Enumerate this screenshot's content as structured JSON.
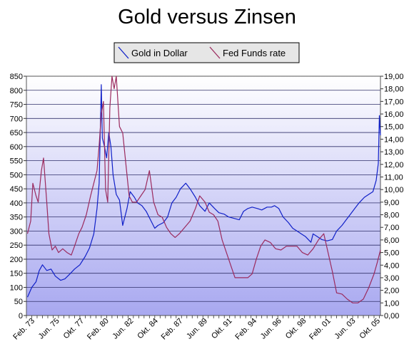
{
  "chart_data": {
    "type": "line",
    "title": "Gold versus Zinsen",
    "legend_position": "top",
    "grid": true,
    "x_tick_labels": [
      "Feb. 73",
      "Jun. 75",
      "Okt. 77",
      "Feb. 80",
      "Jun. 82",
      "Okt. 84",
      "Feb. 87",
      "Jun. 89",
      "Okt. 91",
      "Feb. 94",
      "Jun. 96",
      "Okt. 98",
      "Feb. 01",
      "Jun. 03",
      "Okt. 05"
    ],
    "x_range": [
      1973.0,
      2006.1
    ],
    "y_left": {
      "range": [
        0,
        850
      ],
      "ticks": [
        "0",
        "50",
        "100",
        "150",
        "200",
        "250",
        "300",
        "350",
        "400",
        "450",
        "500",
        "550",
        "600",
        "650",
        "700",
        "750",
        "800",
        "850"
      ]
    },
    "y_right": {
      "range": [
        0,
        19
      ],
      "ticks": [
        "0,00",
        "1,00",
        "2,00",
        "3,00",
        "4,00",
        "5,00",
        "6,00",
        "7,00",
        "8,00",
        "9,00",
        "10,00",
        "11,00",
        "12,00",
        "13,00",
        "14,00",
        "15,00",
        "16,00",
        "17,00",
        "18,00",
        "19,00"
      ]
    },
    "colors": {
      "gold": "#1020c8",
      "fed": "#9b2a5e",
      "plot_top": "#ffffff",
      "plot_bottom": "#a8a8f0",
      "grid": "#30306a"
    },
    "series": [
      {
        "name": "Gold in Dollar",
        "axis": "left",
        "x": [
          1973.1,
          1973.5,
          1973.9,
          1974.2,
          1974.5,
          1974.9,
          1975.3,
          1975.7,
          1976.2,
          1976.6,
          1977.0,
          1977.5,
          1978.0,
          1978.5,
          1978.9,
          1979.3,
          1979.6,
          1979.8,
          1980.0,
          1980.1,
          1980.3,
          1980.5,
          1980.7,
          1980.9,
          1981.1,
          1981.4,
          1981.7,
          1982.0,
          1982.4,
          1982.7,
          1983.1,
          1983.4,
          1983.8,
          1984.2,
          1984.6,
          1985.0,
          1985.3,
          1985.8,
          1986.2,
          1986.6,
          1987.0,
          1987.4,
          1987.9,
          1988.3,
          1988.8,
          1989.2,
          1989.7,
          1990.1,
          1990.6,
          1991.0,
          1991.5,
          1991.9,
          1992.4,
          1992.9,
          1993.3,
          1993.7,
          1994.1,
          1994.6,
          1995.0,
          1995.5,
          1995.9,
          1996.2,
          1996.6,
          1997.0,
          1997.5,
          1997.9,
          1998.3,
          1998.7,
          1999.1,
          1999.6,
          1999.8,
          2000.2,
          2000.6,
          2001.1,
          2001.6,
          2002.0,
          2002.5,
          2002.9,
          2003.3,
          2003.7,
          2004.1,
          2004.6,
          2005.0,
          2005.4,
          2005.7,
          2005.9,
          2006.0,
          2006.1
        ],
        "values": [
          65,
          100,
          120,
          160,
          180,
          160,
          165,
          140,
          125,
          130,
          145,
          165,
          180,
          210,
          240,
          290,
          380,
          470,
          820,
          630,
          600,
          560,
          650,
          600,
          500,
          430,
          410,
          320,
          380,
          440,
          420,
          400,
          390,
          370,
          340,
          310,
          320,
          330,
          350,
          400,
          420,
          450,
          470,
          450,
          420,
          390,
          370,
          400,
          380,
          365,
          360,
          350,
          345,
          340,
          370,
          380,
          385,
          380,
          375,
          385,
          385,
          390,
          380,
          350,
          330,
          310,
          300,
          290,
          280,
          260,
          290,
          280,
          270,
          265,
          270,
          300,
          320,
          340,
          360,
          380,
          400,
          420,
          430,
          440,
          480,
          540,
          710,
          640
        ]
      },
      {
        "name": "Fed Funds rate",
        "axis": "right",
        "x": [
          1973.1,
          1973.4,
          1973.6,
          1973.9,
          1974.1,
          1974.4,
          1974.6,
          1974.9,
          1975.1,
          1975.4,
          1975.7,
          1976.0,
          1976.4,
          1976.8,
          1977.2,
          1977.5,
          1977.9,
          1978.2,
          1978.6,
          1979.0,
          1979.3,
          1979.6,
          1979.8,
          1980.0,
          1980.2,
          1980.4,
          1980.6,
          1980.8,
          1981.0,
          1981.2,
          1981.4,
          1981.7,
          1982.0,
          1982.3,
          1982.6,
          1982.9,
          1983.3,
          1983.7,
          1984.1,
          1984.5,
          1984.9,
          1985.3,
          1985.7,
          1986.1,
          1986.5,
          1986.9,
          1987.3,
          1987.8,
          1988.3,
          1988.8,
          1989.2,
          1989.7,
          1990.1,
          1990.5,
          1990.9,
          1991.3,
          1991.7,
          1992.1,
          1992.5,
          1992.9,
          1993.3,
          1993.7,
          1994.1,
          1994.5,
          1994.9,
          1995.3,
          1995.8,
          1996.3,
          1996.8,
          1997.3,
          1997.8,
          1998.3,
          1998.8,
          1999.3,
          1999.8,
          2000.3,
          2000.8,
          2001.2,
          2001.6,
          2002.0,
          2002.5,
          2003.0,
          2003.5,
          2004.0,
          2004.5,
          2005.0,
          2005.5,
          2005.8,
          2006.1
        ],
        "values": [
          6.5,
          7.5,
          10.5,
          9.5,
          9.0,
          11.5,
          12.5,
          9.0,
          6.5,
          5.2,
          5.5,
          5.0,
          5.3,
          5.0,
          4.8,
          5.5,
          6.5,
          7.0,
          8.0,
          9.5,
          10.5,
          11.5,
          13.5,
          16.0,
          17.0,
          10.0,
          9.0,
          16.5,
          19.0,
          18.0,
          19.0,
          15.0,
          14.5,
          12.0,
          9.5,
          9.0,
          9.0,
          9.5,
          10.0,
          11.5,
          9.0,
          8.0,
          7.8,
          7.0,
          6.5,
          6.2,
          6.5,
          7.0,
          7.5,
          8.5,
          9.5,
          9.0,
          8.2,
          8.0,
          7.5,
          6.0,
          5.0,
          4.0,
          3.0,
          3.0,
          3.0,
          3.0,
          3.3,
          4.5,
          5.5,
          6.0,
          5.8,
          5.3,
          5.2,
          5.5,
          5.5,
          5.5,
          5.0,
          4.8,
          5.3,
          6.0,
          6.5,
          5.0,
          3.5,
          1.8,
          1.7,
          1.3,
          1.0,
          1.0,
          1.3,
          2.2,
          3.3,
          4.2,
          5.2
        ]
      }
    ]
  }
}
